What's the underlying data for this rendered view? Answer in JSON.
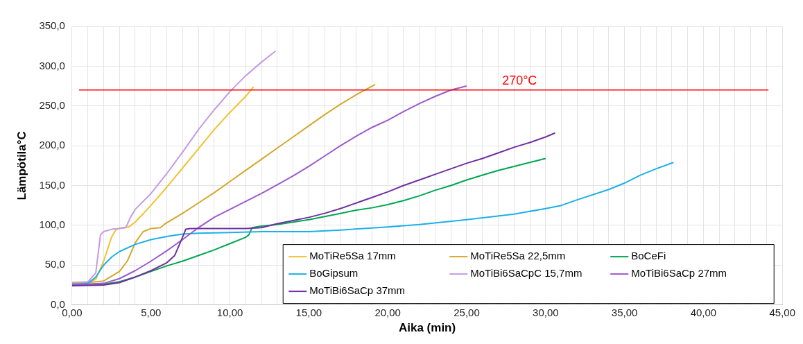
{
  "chart_data": {
    "type": "line",
    "xlabel": "Aika (min)",
    "ylabel": "Lämpötila°C",
    "xlim": [
      0,
      45
    ],
    "ylim": [
      0,
      350
    ],
    "xticks": [
      {
        "value": 0,
        "label": "0,00"
      },
      {
        "value": 1,
        "label": null
      },
      {
        "value": 2,
        "label": null
      },
      {
        "value": 3,
        "label": null
      },
      {
        "value": 4,
        "label": null
      },
      {
        "value": 5,
        "label": "5,00"
      },
      {
        "value": 6,
        "label": null
      },
      {
        "value": 7,
        "label": null
      },
      {
        "value": 8,
        "label": null
      },
      {
        "value": 9,
        "label": null
      },
      {
        "value": 10,
        "label": "10,00"
      },
      {
        "value": 11,
        "label": null
      },
      {
        "value": 12,
        "label": null
      },
      {
        "value": 13,
        "label": null
      },
      {
        "value": 14,
        "label": null
      },
      {
        "value": 15,
        "label": "15,00"
      },
      {
        "value": 16,
        "label": null
      },
      {
        "value": 17,
        "label": null
      },
      {
        "value": 18,
        "label": null
      },
      {
        "value": 19,
        "label": null
      },
      {
        "value": 20,
        "label": "20,00"
      },
      {
        "value": 21,
        "label": null
      },
      {
        "value": 22,
        "label": null
      },
      {
        "value": 23,
        "label": null
      },
      {
        "value": 24,
        "label": null
      },
      {
        "value": 25,
        "label": "25,00"
      },
      {
        "value": 26,
        "label": null
      },
      {
        "value": 27,
        "label": null
      },
      {
        "value": 28,
        "label": null
      },
      {
        "value": 29,
        "label": null
      },
      {
        "value": 30,
        "label": "30,00"
      },
      {
        "value": 31,
        "label": null
      },
      {
        "value": 32,
        "label": null
      },
      {
        "value": 33,
        "label": null
      },
      {
        "value": 34,
        "label": null
      },
      {
        "value": 35,
        "label": "35,00"
      },
      {
        "value": 36,
        "label": null
      },
      {
        "value": 37,
        "label": null
      },
      {
        "value": 38,
        "label": null
      },
      {
        "value": 39,
        "label": null
      },
      {
        "value": 40,
        "label": "40,00"
      },
      {
        "value": 41,
        "label": null
      },
      {
        "value": 42,
        "label": null
      },
      {
        "value": 43,
        "label": null
      },
      {
        "value": 44,
        "label": null
      },
      {
        "value": 45,
        "label": "45,00"
      }
    ],
    "yticks": [
      {
        "value": 0,
        "label": "0,0"
      },
      {
        "value": 50,
        "label": "50,0"
      },
      {
        "value": 100,
        "label": "100,0"
      },
      {
        "value": 150,
        "label": "150,0"
      },
      {
        "value": 200,
        "label": "200,0"
      },
      {
        "value": 250,
        "label": "250,0"
      },
      {
        "value": 300,
        "label": "300,0"
      },
      {
        "value": 350,
        "label": "350,0"
      }
    ],
    "grid": true,
    "legend": "bottom right",
    "marker": "none",
    "line_style": "solid",
    "ref_lines": [
      {
        "axis": "y",
        "value": 270,
        "label": "270°C",
        "color": "#ff0000"
      }
    ],
    "series": [
      {
        "name": "MoTiRe5Sa 17mm",
        "color": "#f2c12e",
        "x": [
          0,
          1,
          1.5,
          2,
          2.5,
          2.8,
          3.2,
          3.6,
          4,
          5,
          6,
          7,
          8,
          9,
          10,
          11,
          11.5
        ],
        "values": [
          27,
          28,
          32,
          55,
          85,
          95,
          97,
          98,
          104,
          125,
          148,
          172,
          196,
          220,
          242,
          262,
          274
        ]
      },
      {
        "name": "MoTiRe5Sa 22,5mm",
        "color": "#d4a72c",
        "x": [
          0,
          1,
          2,
          3,
          3.5,
          4,
          4.5,
          5,
          5.6,
          5.9,
          7,
          8,
          9,
          10,
          11,
          12,
          13,
          14,
          15,
          16,
          17,
          18,
          19.2
        ],
        "values": [
          28,
          28,
          30,
          42,
          55,
          78,
          92,
          96,
          97,
          102,
          115,
          128,
          141,
          155,
          169,
          183,
          197,
          211,
          225,
          239,
          252,
          264,
          277
        ]
      },
      {
        "name": "BoCeFi",
        "color": "#00a650",
        "x": [
          0,
          2,
          3,
          4,
          5,
          6,
          7,
          8,
          9,
          10,
          11,
          11.2,
          11.4,
          12,
          13,
          14,
          15,
          16,
          17,
          18,
          19,
          20,
          21,
          22,
          23,
          24,
          25,
          26,
          27,
          28,
          29,
          30
        ],
        "values": [
          26,
          26,
          29,
          35,
          42,
          49,
          55,
          62,
          69,
          77,
          85,
          88,
          97,
          99,
          101,
          104,
          107,
          111,
          115,
          119,
          122,
          126,
          131,
          137,
          144,
          150,
          157,
          163,
          169,
          174,
          179,
          184
        ]
      },
      {
        "name": "BoGipsum",
        "color": "#1ab0e8",
        "x": [
          0,
          1,
          1.5,
          2,
          2.5,
          3,
          4,
          5,
          6,
          7,
          8,
          10,
          12,
          15,
          17,
          20,
          22,
          25,
          28,
          30,
          31,
          32,
          34,
          35,
          36,
          37,
          38.1
        ],
        "values": [
          25,
          27,
          35,
          50,
          60,
          67,
          76,
          82,
          86,
          89,
          90,
          91,
          92,
          92,
          94,
          98,
          101,
          107,
          114,
          121,
          125,
          132,
          145,
          153,
          163,
          171,
          179
        ]
      },
      {
        "name": "MoTiBi6SaCpC 15,7mm",
        "color": "#c39ae6",
        "x": [
          0,
          1,
          1.5,
          1.8,
          2,
          2.5,
          3,
          3.4,
          3.7,
          4,
          5,
          6,
          7,
          8,
          9,
          10,
          11,
          12,
          12.9
        ],
        "values": [
          28,
          29,
          40,
          88,
          92,
          95,
          96,
          97,
          110,
          120,
          140,
          165,
          192,
          220,
          245,
          268,
          288,
          305,
          319
        ]
      },
      {
        "name": "MoTiBi6SaCp 27mm",
        "color": "#9b59d0",
        "x": [
          0,
          2,
          3,
          4,
          5,
          6,
          7,
          8,
          9,
          10,
          11,
          12,
          13,
          14,
          15,
          16,
          17,
          18,
          19,
          20,
          21,
          22,
          23,
          24,
          25
        ],
        "values": [
          25,
          27,
          33,
          43,
          55,
          68,
          82,
          97,
          110,
          120,
          130,
          140,
          151,
          162,
          174,
          187,
          200,
          212,
          223,
          232,
          243,
          253,
          262,
          270,
          275
        ]
      },
      {
        "name": "MoTiBi6SaCp 37mm",
        "color": "#7030a0",
        "x": [
          0,
          2,
          3,
          4,
          5,
          6,
          6.5,
          7,
          7.2,
          7.5,
          9,
          11,
          12,
          13,
          14,
          15,
          16,
          17,
          18,
          19,
          20,
          21,
          22,
          23,
          24,
          25,
          26,
          27,
          28,
          29,
          30,
          30.6
        ],
        "values": [
          24,
          25,
          28,
          35,
          43,
          53,
          62,
          85,
          95,
          96,
          96,
          96,
          97,
          102,
          106,
          110,
          115,
          121,
          128,
          135,
          142,
          150,
          157,
          164,
          171,
          178,
          184,
          191,
          198,
          204,
          211,
          216
        ]
      }
    ]
  }
}
